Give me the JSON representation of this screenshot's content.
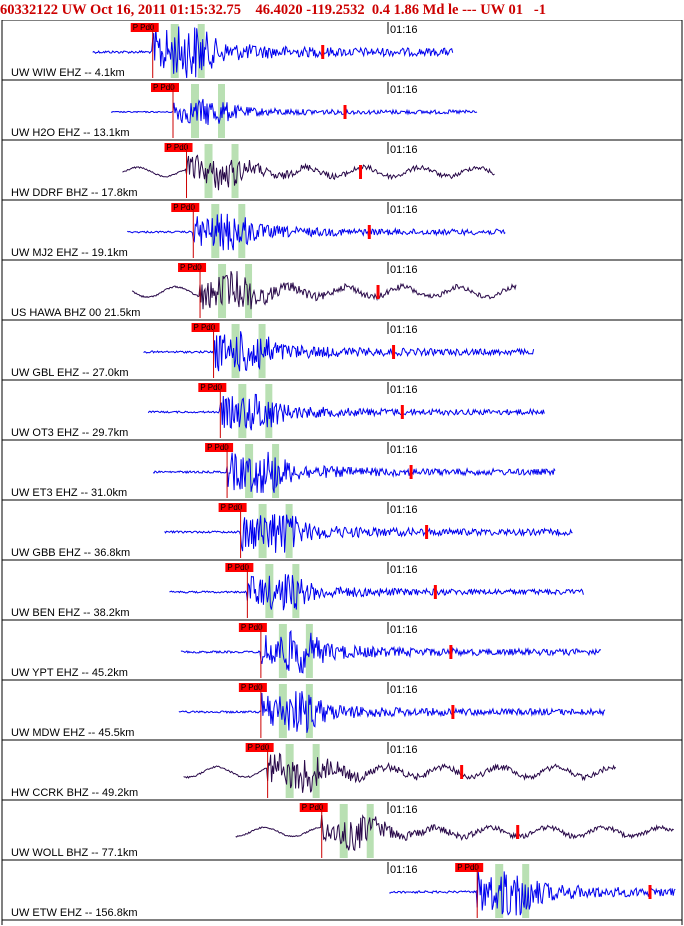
{
  "header": {
    "title": "60332122 UW Oct 16, 2011 01:15:32.75    46.4020 -119.2532  0.4 1.86 Md le --- UW 01   -1"
  },
  "colors": {
    "header_text": "#cc0000",
    "trace_blue": "#0000ee",
    "trace_dark": "#2a0a4a",
    "pick_box": "#ff0000",
    "green_band": "#a8d8a0",
    "pick_line": "#cc0000",
    "panel_border": "#000000"
  },
  "chart_data": {
    "type": "seismogram",
    "title": "60332122 UW Oct 16, 2011 01:15:32.75    46.4020 -119.2532  0.4 1.86 Md le --- UW 01   -1",
    "time_mark_label": "01:16",
    "pick_label": "P Pd0",
    "pick_text": "P Pd0",
    "traces": [
      {
        "label": "UW WIW EHZ -- 4.1km",
        "distance_km": 4.1,
        "color": "blue",
        "amplitude": 1.0,
        "pick_time": 0.22
      },
      {
        "label": "UW H2O EHZ -- 13.1km",
        "distance_km": 13.1,
        "color": "blue",
        "amplitude": 0.5,
        "pick_time": 0.25
      },
      {
        "label": "HW DDRF BHZ -- 17.8km",
        "distance_km": 17.8,
        "color": "dark",
        "amplitude": 0.7,
        "pick_time": 0.27
      },
      {
        "label": "UW MJ2 EHZ -- 19.1km",
        "distance_km": 19.1,
        "color": "blue",
        "amplitude": 0.7,
        "pick_time": 0.28
      },
      {
        "label": "US HAWA BHZ 00 21.5km",
        "distance_km": 21.5,
        "color": "dark",
        "amplitude": 0.8,
        "pick_time": 0.29
      },
      {
        "label": "UW GBL EHZ -- 27.0km",
        "distance_km": 27.0,
        "color": "blue",
        "amplitude": 0.8,
        "pick_time": 0.31
      },
      {
        "label": "UW OT3 EHZ -- 29.7km",
        "distance_km": 29.7,
        "color": "blue",
        "amplitude": 0.7,
        "pick_time": 0.32
      },
      {
        "label": "UW ET3 EHZ -- 31.0km",
        "distance_km": 31.0,
        "color": "blue",
        "amplitude": 0.8,
        "pick_time": 0.33
      },
      {
        "label": "UW GBB EHZ -- 36.8km",
        "distance_km": 36.8,
        "color": "blue",
        "amplitude": 0.8,
        "pick_time": 0.35
      },
      {
        "label": "UW BEN EHZ -- 38.2km",
        "distance_km": 38.2,
        "color": "blue",
        "amplitude": 0.7,
        "pick_time": 0.36
      },
      {
        "label": "UW YPT EHZ -- 45.2km",
        "distance_km": 45.2,
        "color": "blue",
        "amplitude": 0.8,
        "pick_time": 0.38
      },
      {
        "label": "UW MDW EHZ -- 45.5km",
        "distance_km": 45.5,
        "color": "blue",
        "amplitude": 0.8,
        "pick_time": 0.38
      },
      {
        "label": "HW CCRK BHZ -- 49.2km",
        "distance_km": 49.2,
        "color": "dark",
        "amplitude": 0.8,
        "pick_time": 0.39
      },
      {
        "label": "UW WOLL BHZ -- 77.1km",
        "distance_km": 77.1,
        "color": "dark",
        "amplitude": 0.7,
        "pick_time": 0.47
      },
      {
        "label": "UW ETW EHZ -- 156.8km",
        "distance_km": 156.8,
        "color": "blue",
        "amplitude": 0.9,
        "pick_time": 0.7
      }
    ]
  }
}
